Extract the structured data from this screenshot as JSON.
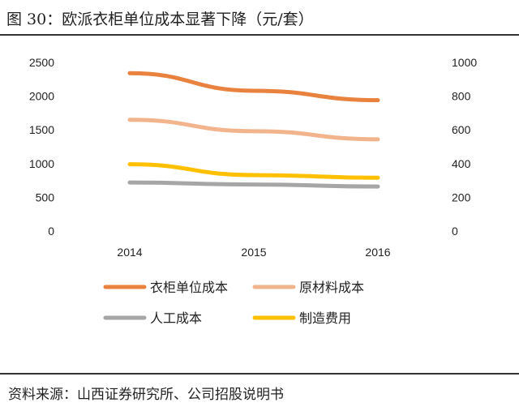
{
  "figure": {
    "title": "图 30：欧派衣柜单位成本显著下降（元/套）",
    "source": "资料来源：山西证券研究所、公司招股说明书"
  },
  "chart_data": {
    "type": "line",
    "title": "欧派衣柜单位成本显著下降（元/套）",
    "categories": [
      "2014",
      "2015",
      "2016"
    ],
    "y_left": {
      "ticks": [
        "0",
        "500",
        "1000",
        "1500",
        "2000",
        "2500"
      ],
      "range": [
        0,
        2500
      ]
    },
    "y_right": {
      "ticks": [
        "0",
        "200",
        "400",
        "600",
        "800",
        "1000"
      ],
      "range": [
        0,
        1000
      ]
    },
    "series": [
      {
        "name": "衣柜单位成本",
        "values": [
          2340,
          2080,
          1940
        ],
        "color": "#E8823E",
        "axis": "left"
      },
      {
        "name": "原材料成本",
        "values": [
          1650,
          1480,
          1360
        ],
        "color": "#F2B48C",
        "axis": "left"
      },
      {
        "name": "人工成本",
        "values": [
          720,
          690,
          660
        ],
        "color": "#A6A6A6",
        "axis": "left"
      },
      {
        "name": "制造费用",
        "values": [
          990,
          830,
          790
        ],
        "color": "#FFC000",
        "axis": "left"
      }
    ],
    "legend_position": "bottom",
    "grid": false
  }
}
